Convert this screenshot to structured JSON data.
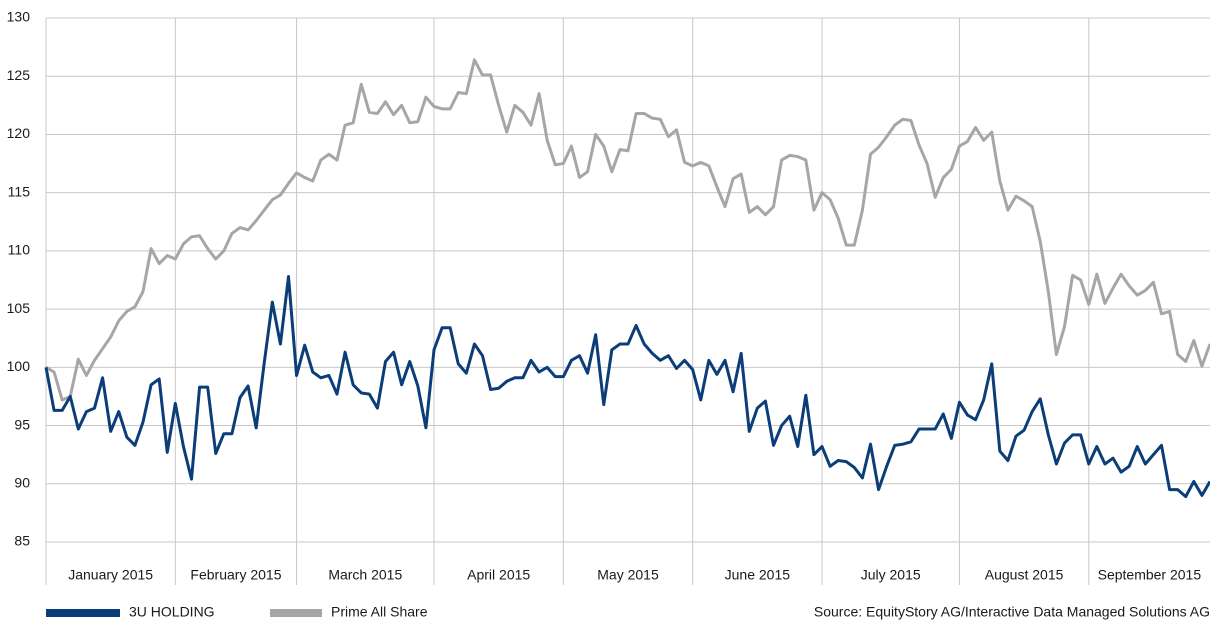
{
  "chart_data": {
    "type": "line",
    "source": "Source: EquityStory AG/Interactive Data Managed Solutions AG",
    "categories": [
      "January 2015",
      null,
      null,
      null,
      null,
      null,
      null,
      null,
      null,
      null,
      null,
      null,
      null,
      null,
      null,
      null,
      "February 2015",
      null,
      null,
      null,
      null,
      null,
      null,
      null,
      null,
      null,
      null,
      null,
      null,
      null,
      null,
      "March 2015",
      null,
      null,
      null,
      null,
      null,
      null,
      null,
      null,
      null,
      null,
      null,
      null,
      null,
      null,
      null,
      null,
      "April 2015",
      null,
      null,
      null,
      null,
      null,
      null,
      null,
      null,
      null,
      null,
      null,
      null,
      null,
      null,
      null,
      "May 2015",
      null,
      null,
      null,
      null,
      null,
      null,
      null,
      null,
      null,
      null,
      null,
      null,
      null,
      null,
      null,
      "June 2015",
      null,
      null,
      null,
      null,
      null,
      null,
      null,
      null,
      null,
      null,
      null,
      null,
      null,
      null,
      null,
      "July 2015",
      null,
      null,
      null,
      null,
      null,
      null,
      null,
      null,
      null,
      null,
      null,
      null,
      null,
      null,
      null,
      null,
      "August 2015",
      null,
      null,
      null,
      null,
      null,
      null,
      null,
      null,
      null,
      null,
      null,
      null,
      null,
      null,
      null,
      "September 2015",
      null,
      null,
      null,
      null,
      null,
      null,
      null,
      null,
      null,
      null,
      null,
      null,
      null,
      null,
      null
    ],
    "series": [
      {
        "name": "3U HOLDING",
        "color": "#0b3d78",
        "values": [
          100,
          96.3,
          96.3,
          97.5,
          94.7,
          96.2,
          96.5,
          99.1,
          94.5,
          96.2,
          94,
          93.3,
          95.3,
          98.5,
          99,
          92.7,
          96.9,
          93.2,
          90.4,
          98.3,
          98.3,
          92.6,
          94.3,
          94.3,
          97.4,
          98.4,
          94.8,
          100.4,
          105.6,
          102,
          107.8,
          99.3,
          101.9,
          99.6,
          99.1,
          99.3,
          97.7,
          101.3,
          98.5,
          97.8,
          97.7,
          96.5,
          100.5,
          101.3,
          98.5,
          100.5,
          98.4,
          94.8,
          101.5,
          103.4,
          103.4,
          100.3,
          99.5,
          102,
          101,
          98.1,
          98.2,
          98.8,
          99.1,
          99.1,
          100.6,
          99.6,
          100,
          99.2,
          99.2,
          100.6,
          101,
          99.5,
          102.8,
          96.8,
          101.5,
          102,
          102,
          103.6,
          102,
          101.2,
          100.6,
          101,
          99.9,
          100.6,
          99.8,
          97.2,
          100.6,
          99.4,
          100.6,
          97.9,
          101.2,
          94.5,
          96.5,
          97.1,
          93.3,
          95,
          95.8,
          93.2,
          97.6,
          92.5,
          93.2,
          91.5,
          92,
          91.9,
          91.4,
          90.5,
          93.4,
          89.5,
          91.5,
          93.3,
          93.4,
          93.6,
          94.7,
          94.7,
          94.7,
          96,
          93.9,
          97,
          95.9,
          95.5,
          97.2,
          100.3,
          92.8,
          92,
          94.1,
          94.6,
          96.2,
          97.3,
          94.2,
          91.7,
          93.5,
          94.2,
          94.2,
          91.7,
          93.2,
          91.7,
          92.2,
          91,
          91.5,
          93.2,
          91.7,
          92.5,
          93.3,
          89.5,
          89.5,
          88.9,
          90.2,
          89,
          90.2
        ]
      },
      {
        "name": "Prime All Share",
        "color": "#a6a6a6",
        "values": [
          100,
          99.6,
          97.2,
          97.5,
          100.7,
          99.3,
          100.6,
          101.6,
          102.6,
          104,
          104.8,
          105.2,
          106.5,
          110.2,
          108.9,
          109.6,
          109.3,
          110.6,
          111.2,
          111.3,
          110.2,
          109.3,
          110,
          111.5,
          112,
          111.8,
          112.6,
          113.5,
          114.4,
          114.8,
          115.8,
          116.7,
          116.3,
          116,
          117.8,
          118.3,
          117.8,
          120.8,
          121,
          124.3,
          121.9,
          121.8,
          122.8,
          121.7,
          122.5,
          121,
          121.1,
          123.2,
          122.4,
          122.2,
          122.2,
          123.6,
          123.5,
          126.4,
          125.1,
          125.1,
          122.5,
          120.2,
          122.5,
          121.9,
          120.8,
          123.5,
          119.5,
          117.4,
          117.5,
          119,
          116.3,
          116.8,
          120,
          119,
          116.8,
          118.7,
          118.6,
          121.8,
          121.8,
          121.4,
          121.3,
          119.8,
          120.4,
          117.6,
          117.3,
          117.6,
          117.3,
          115.5,
          113.8,
          116.2,
          116.6,
          113.3,
          113.8,
          113.1,
          113.8,
          117.8,
          118.2,
          118.1,
          117.8,
          113.5,
          115,
          114.4,
          112.8,
          110.5,
          110.5,
          113.5,
          118.3,
          118.9,
          119.8,
          120.8,
          121.3,
          121.2,
          119.1,
          117.5,
          114.6,
          116.3,
          117,
          119,
          119.4,
          120.6,
          119.5,
          120.2,
          116,
          113.5,
          114.7,
          114.3,
          113.8,
          110.8,
          106.5,
          101.1,
          103.5,
          107.9,
          107.5,
          105.4,
          108,
          105.5,
          106.8,
          108,
          107,
          106.2,
          106.6,
          107.3,
          104.6,
          104.8,
          101.1,
          100.5,
          102.3,
          100.1,
          102
        ]
      }
    ],
    "ylim": [
      85,
      130
    ],
    "yticks": [
      85,
      90,
      95,
      100,
      105,
      110,
      115,
      120,
      125,
      130
    ],
    "grid": true,
    "legend": "bottom"
  }
}
